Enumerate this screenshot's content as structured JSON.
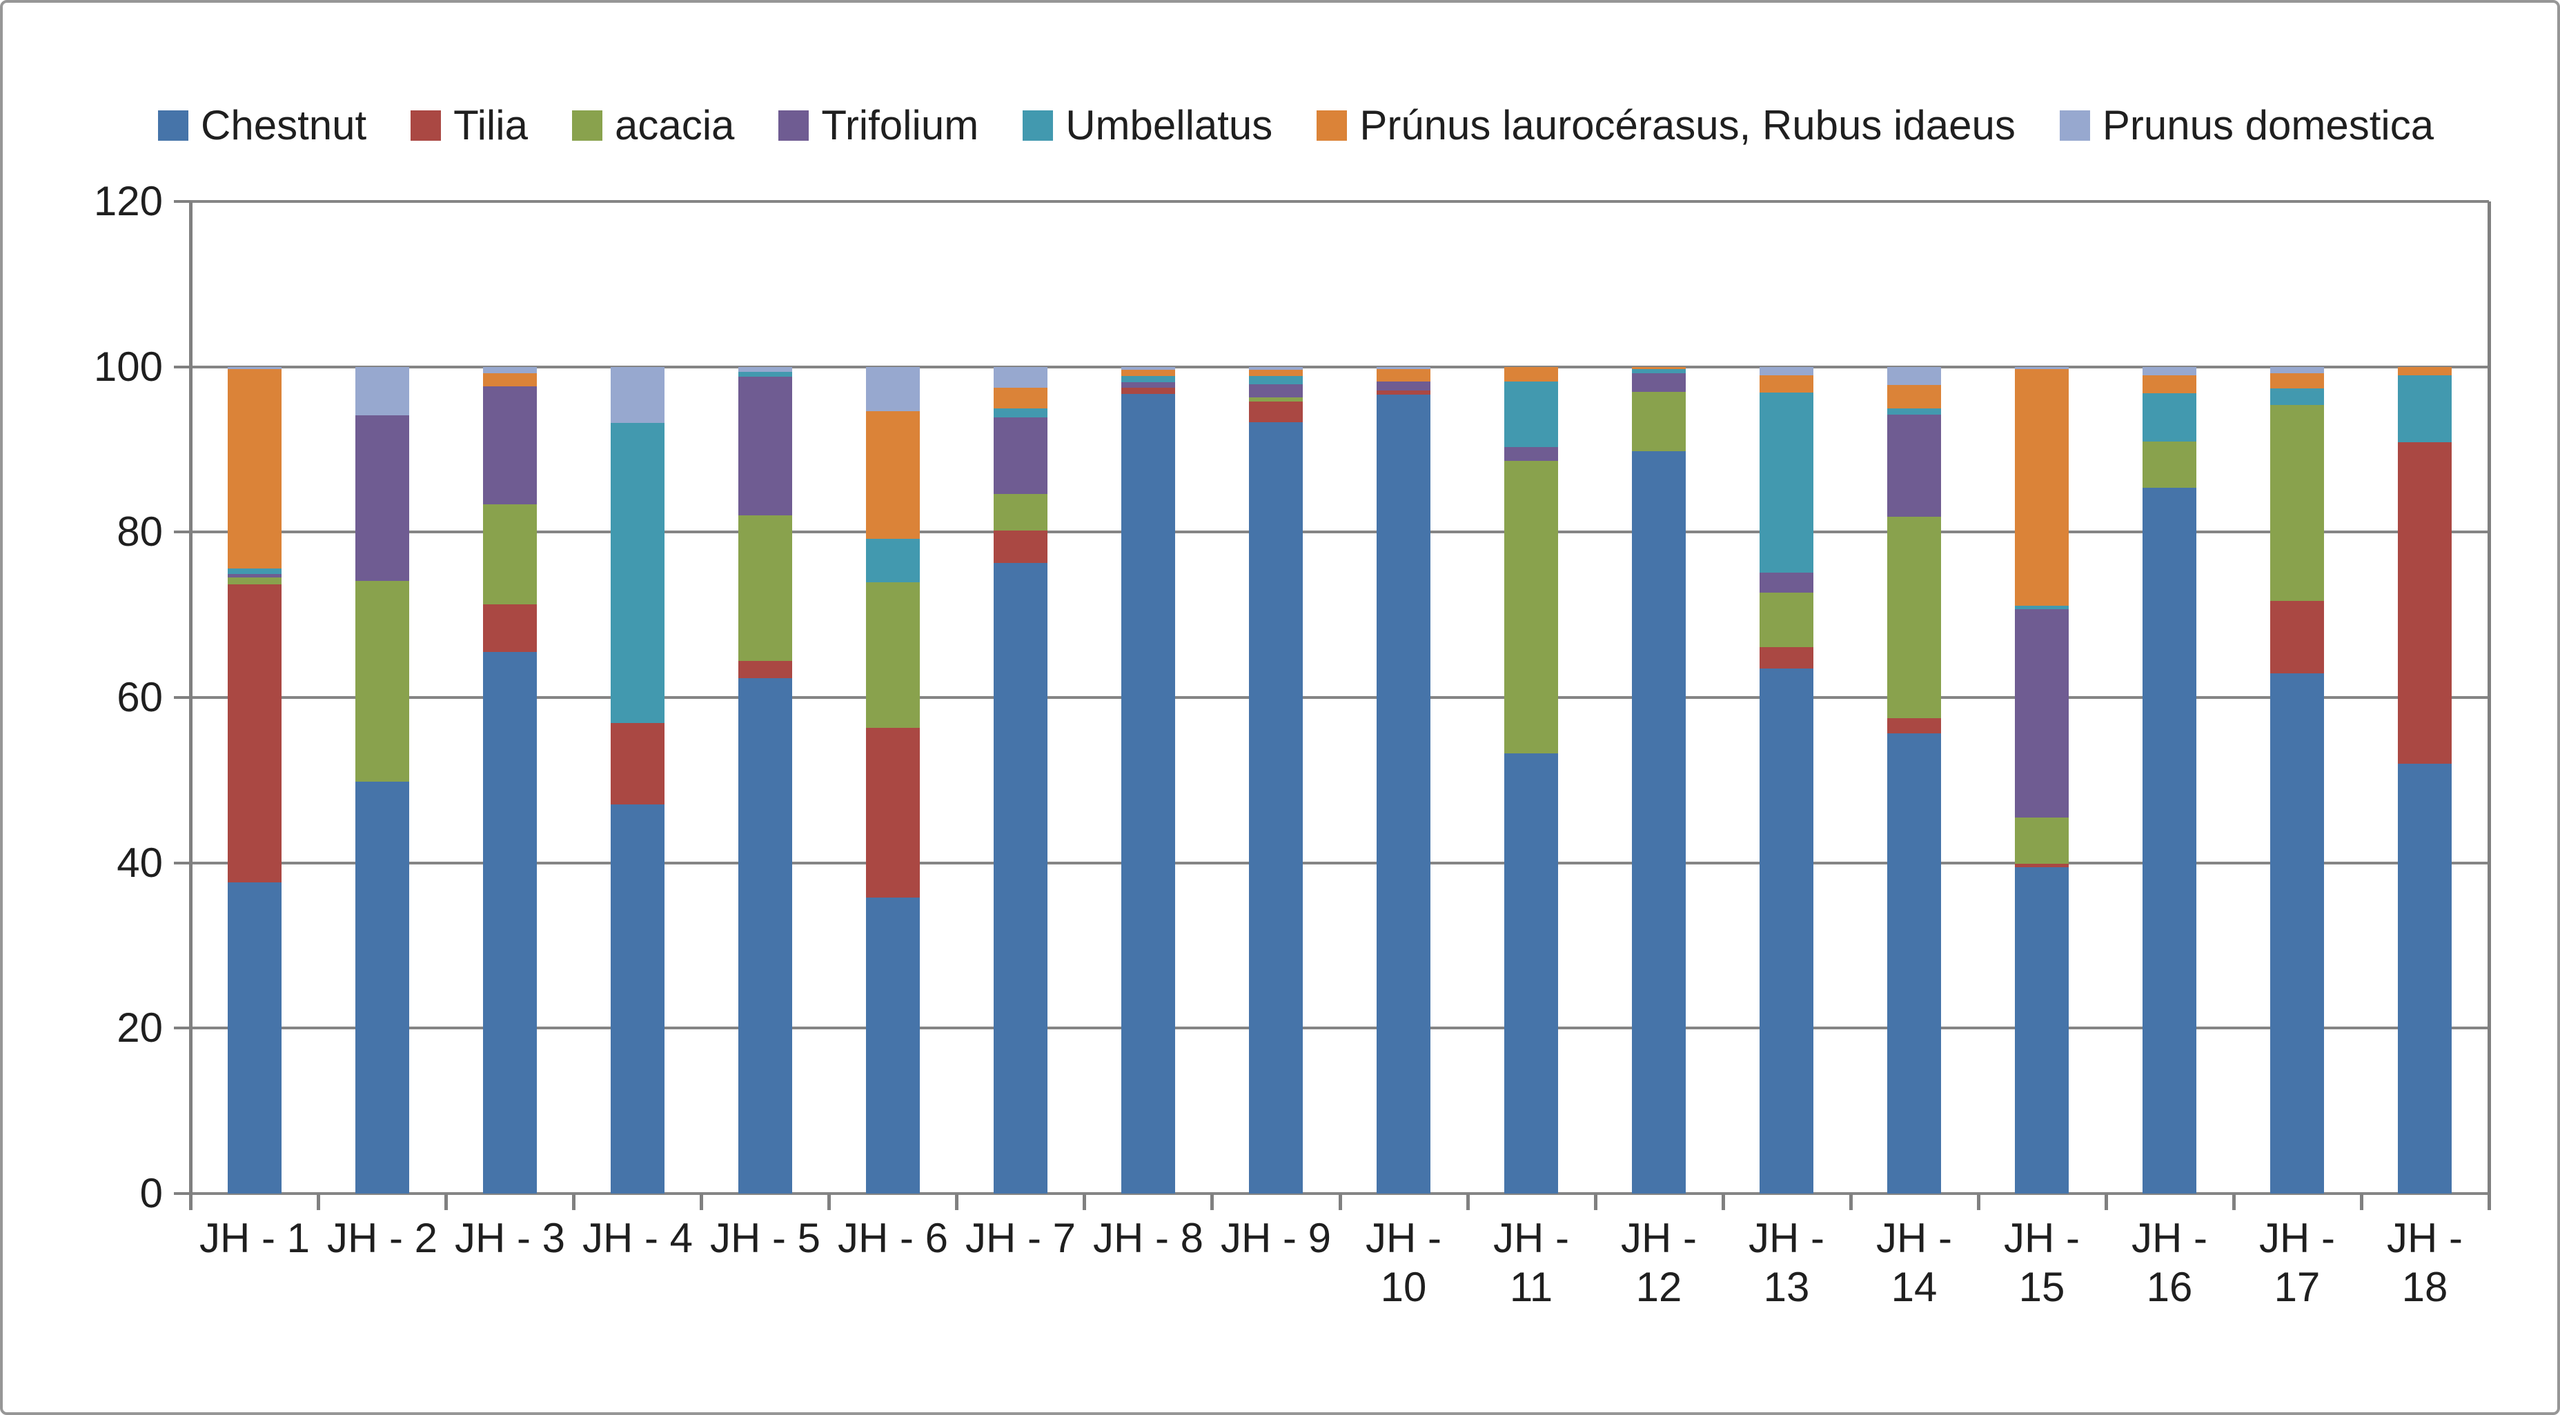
{
  "chart_data": {
    "type": "bar",
    "stacked": true,
    "title": "",
    "xlabel": "",
    "ylabel": "",
    "legend_position": "top",
    "gridlines": true,
    "categories": [
      "JH - 1",
      "JH - 2",
      "JH - 3",
      "JH - 4",
      "JH - 5",
      "JH - 6",
      "JH - 7",
      "JH - 8",
      "JH - 9",
      "JH - 10",
      "JH - 11",
      "JH - 12",
      "JH - 13",
      "JH - 14",
      "JH - 15",
      "JH - 16",
      "JH - 17",
      "JH - 18"
    ],
    "y_axis": {
      "min": 0,
      "max": 120,
      "step": 20,
      "ticks": [
        0,
        20,
        40,
        60,
        80,
        100,
        120
      ]
    },
    "series": [
      {
        "name": "Chestnut",
        "color": "#4674A9",
        "values": [
          37.6,
          49.8,
          65.5,
          47.1,
          62.3,
          35.8,
          76.3,
          96.7,
          93.3,
          96.6,
          53.2,
          89.8,
          63.5,
          55.7,
          39.5,
          85.4,
          62.9,
          52.0
        ]
      },
      {
        "name": "Tilia",
        "color": "#AA4843",
        "values": [
          36.1,
          0,
          5.8,
          9.8,
          2.1,
          20.5,
          3.9,
          0.8,
          2.5,
          0.5,
          0,
          0,
          2.6,
          1.8,
          0.4,
          0,
          8.8,
          38.9
        ]
      },
      {
        "name": "acacia",
        "color": "#89A24D",
        "values": [
          0.8,
          24.3,
          12.1,
          0,
          17.6,
          17.6,
          4.4,
          0,
          0.5,
          0,
          35.4,
          7.2,
          6.6,
          24.4,
          5.6,
          5.6,
          23.7,
          0
        ]
      },
      {
        "name": "Trifolium",
        "color": "#6F5C92",
        "values": [
          0.4,
          20.0,
          14.2,
          0,
          16.8,
          0,
          9.3,
          0.6,
          1.6,
          1.1,
          1.7,
          2.2,
          2.4,
          12.3,
          25.2,
          0,
          0,
          0
        ]
      },
      {
        "name": "Umbellatus",
        "color": "#4299AF",
        "values": [
          0.7,
          0,
          0,
          36.3,
          0.6,
          5.3,
          1.1,
          0.8,
          1.0,
          0,
          7.9,
          0.5,
          21.8,
          0.8,
          0.4,
          5.8,
          2.0,
          8.1
        ]
      },
      {
        "name": "Prúnus laurocérasus, Rubus idaeus",
        "color": "#DB8338",
        "values": [
          24.1,
          0,
          1.6,
          0,
          0,
          15.4,
          2.5,
          0.7,
          0.7,
          1.5,
          1.8,
          0.3,
          2.1,
          2.8,
          28.6,
          2.2,
          1.8,
          1.0
        ]
      },
      {
        "name": "Prunus domestica",
        "color": "#97A8CF",
        "values": [
          0.3,
          5.9,
          0.8,
          6.8,
          0.6,
          5.4,
          2.5,
          0.4,
          0.4,
          0.3,
          0,
          0,
          1.0,
          2.2,
          0.3,
          1.0,
          0.8,
          0
        ]
      }
    ]
  }
}
